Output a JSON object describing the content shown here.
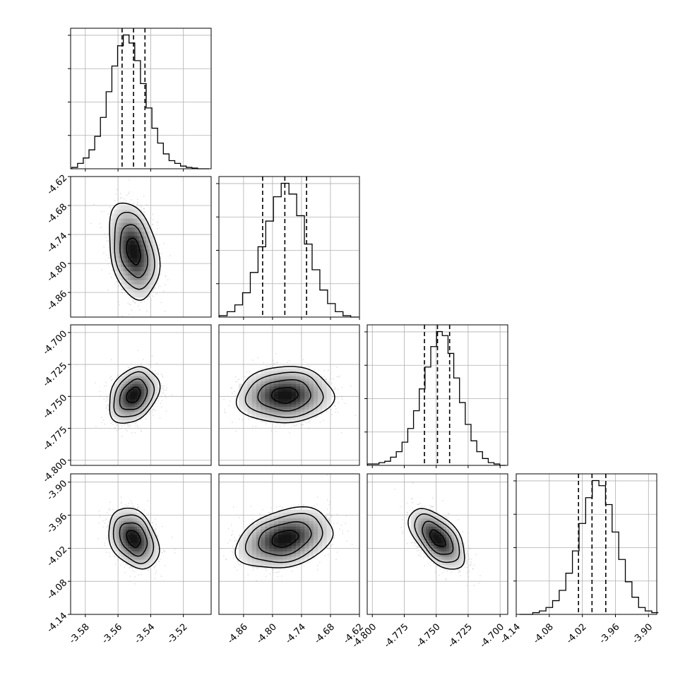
{
  "chart_data": {
    "type": "corner",
    "title": "",
    "parameters": [
      {
        "ticks": [
          "-3.58",
          "-3.56",
          "-3.54",
          "-3.52"
        ],
        "range": [
          -3.589,
          -3.503
        ],
        "quantiles": [
          -3.5575,
          -3.5505,
          -3.5435
        ],
        "hist_centers": [
          -3.5865,
          -3.583,
          -3.5795,
          -3.576,
          -3.5725,
          -3.569,
          -3.5655,
          -3.562,
          -3.5585,
          -3.555,
          -3.5515,
          -3.548,
          -3.5445,
          -3.541,
          -3.5375,
          -3.534,
          -3.5305,
          -3.527,
          -3.5235,
          -3.52,
          -3.5165,
          -3.513,
          -3.5095,
          -3.506
        ],
        "hist_counts": [
          1,
          4,
          8,
          14,
          24,
          38,
          57,
          76,
          91,
          99,
          93,
          80,
          63,
          45,
          30,
          19,
          11,
          6,
          4,
          2,
          1,
          0.5,
          0,
          0
        ]
      },
      {
        "ticks": [
          "-4.86",
          "-4.80",
          "-4.74",
          "-4.68",
          "-4.62"
        ],
        "range": [
          -4.911,
          -4.62
        ],
        "quantiles": [
          -4.8205,
          -4.7745,
          -4.7295
        ],
        "hist_centers": [
          -4.902,
          -4.886,
          -4.87,
          -4.854,
          -4.838,
          -4.822,
          -4.806,
          -4.79,
          -4.774,
          -4.758,
          -4.742,
          -4.726,
          -4.71,
          -4.694,
          -4.678,
          -4.662,
          -4.646,
          -4.63
        ],
        "hist_counts": [
          1,
          4,
          9,
          18,
          33,
          52,
          71,
          89,
          99,
          91,
          75,
          54,
          35,
          20,
          10,
          4,
          1,
          0
        ]
      },
      {
        "ticks": [
          "-4.800",
          "-4.775",
          "-4.750",
          "-4.725",
          "-4.700"
        ],
        "range": [
          -4.804,
          -4.694
        ],
        "quantiles": [
          -4.7592,
          -4.749,
          -4.7395
        ],
        "hist_centers": [
          -4.8015,
          -4.797,
          -4.7925,
          -4.788,
          -4.7835,
          -4.779,
          -4.7745,
          -4.77,
          -4.7655,
          -4.761,
          -4.7565,
          -4.752,
          -4.7475,
          -4.743,
          -4.7385,
          -4.734,
          -4.7295,
          -4.725,
          -4.7205,
          -4.716,
          -4.7115,
          -4.707,
          -4.7025,
          -4.698
        ],
        "hist_counts": [
          1,
          1,
          2,
          3,
          6,
          10,
          17,
          27,
          40,
          56,
          72,
          87,
          98,
          95,
          82,
          64,
          46,
          30,
          18,
          10,
          5,
          2,
          1,
          0
        ]
      },
      {
        "ticks": [
          "-4.14",
          "-4.08",
          "-4.02",
          "-3.96",
          "-3.90"
        ],
        "range": [
          -4.14,
          -3.885
        ],
        "quantiles": [
          -4.027,
          -4.0025,
          -3.9775
        ],
        "hist_centers": [
          -4.128,
          -4.116,
          -4.104,
          -4.092,
          -4.08,
          -4.068,
          -4.056,
          -4.044,
          -4.032,
          -4.02,
          -4.008,
          -3.996,
          -3.984,
          -3.972,
          -3.96,
          -3.948,
          -3.936,
          -3.924,
          -3.912,
          -3.9,
          -3.888
        ],
        "hist_counts": [
          0,
          0,
          1,
          2,
          4,
          8,
          14,
          24,
          37,
          53,
          68,
          78,
          75,
          64,
          48,
          32,
          19,
          10,
          4,
          2,
          1
        ]
      }
    ],
    "joint": [
      {
        "row": 1,
        "col": 0,
        "mean": [
          -3.5505,
          -4.7745
        ],
        "sd": [
          0.007,
          0.0455
        ],
        "rho": -0.3
      },
      {
        "row": 2,
        "col": 0,
        "mean": [
          -3.5505,
          -4.749
        ],
        "sd": [
          0.007,
          0.01
        ],
        "rho": 0.3
      },
      {
        "row": 2,
        "col": 1,
        "mean": [
          -4.7745,
          -4.749
        ],
        "sd": [
          0.0455,
          0.01
        ],
        "rho": 0.05
      },
      {
        "row": 3,
        "col": 0,
        "mean": [
          -3.5505,
          -4.0025
        ],
        "sd": [
          0.007,
          0.025
        ],
        "rho": -0.3
      },
      {
        "row": 3,
        "col": 1,
        "mean": [
          -4.7745,
          -4.0025
        ],
        "sd": [
          0.0455,
          0.025
        ],
        "rho": 0.3
      },
      {
        "row": 3,
        "col": 2,
        "mean": [
          -4.749,
          -4.0025
        ],
        "sd": [
          0.01,
          0.025
        ],
        "rho": -0.55
      }
    ],
    "grid": true,
    "colors": {
      "ink": "#000000",
      "grid": "#b0b0b0",
      "samples": "#9a9a9a"
    }
  }
}
